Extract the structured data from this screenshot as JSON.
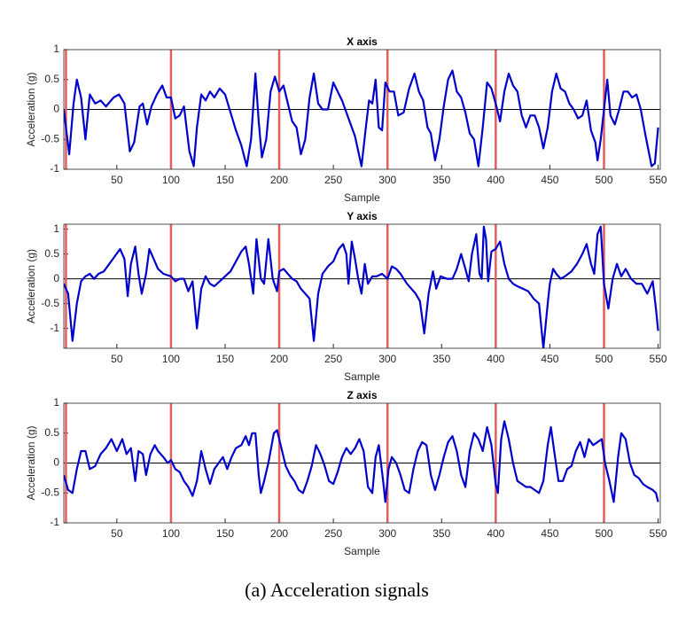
{
  "caption": "(a) Acceleration signals",
  "chart_data": [
    {
      "type": "line",
      "title": "X axis",
      "xlabel": "Sample",
      "ylabel": "Acceleration (g)",
      "color": "#0000cc",
      "xlim": [
        1,
        552
      ],
      "ylim": [
        -1,
        1
      ],
      "xticks": [
        50,
        100,
        150,
        200,
        250,
        300,
        350,
        400,
        450,
        500,
        550
      ],
      "yticks": [
        -1,
        -0.5,
        0,
        0.5,
        1
      ],
      "vlines": [
        3,
        100,
        200,
        300,
        400,
        500
      ],
      "vline_color": "#e06060",
      "hlines": [
        0
      ],
      "x": [
        1,
        6,
        10,
        13,
        17,
        21,
        25,
        30,
        35,
        40,
        47,
        52,
        57,
        62,
        66,
        71,
        74,
        78,
        82,
        87,
        92,
        96,
        100,
        104,
        108,
        112,
        117,
        121,
        124,
        128,
        132,
        136,
        140,
        145,
        150,
        155,
        160,
        165,
        170,
        174,
        178,
        181,
        184,
        188,
        192,
        196,
        200,
        204,
        208,
        212,
        216,
        220,
        224,
        228,
        232,
        236,
        240,
        245,
        250,
        254,
        258,
        262,
        266,
        270,
        276,
        280,
        283,
        286,
        289,
        292,
        295,
        298,
        302,
        306,
        310,
        315,
        320,
        325,
        329,
        333,
        337,
        340,
        344,
        348,
        352,
        356,
        360,
        364,
        368,
        372,
        376,
        380,
        384,
        388,
        392,
        396,
        400,
        404,
        408,
        412,
        416,
        420,
        424,
        428,
        432,
        436,
        440,
        444,
        448,
        452,
        456,
        460,
        464,
        468,
        472,
        476,
        480,
        484,
        488,
        492,
        494,
        497,
        500,
        503,
        506,
        510,
        514,
        518,
        522,
        526,
        530,
        534,
        538,
        544,
        547,
        550
      ],
      "values": [
        0,
        -0.75,
        0.1,
        0.5,
        0.2,
        -0.5,
        0.25,
        0.1,
        0.15,
        0.05,
        0.2,
        0.25,
        0.1,
        -0.7,
        -0.55,
        0.05,
        0.1,
        -0.25,
        0.05,
        0.25,
        0.4,
        0.2,
        0.2,
        -0.15,
        -0.1,
        0.05,
        -0.7,
        -0.95,
        -0.3,
        0.25,
        0.15,
        0.3,
        0.2,
        0.35,
        0.25,
        -0.05,
        -0.35,
        -0.6,
        -0.95,
        -0.5,
        0.6,
        -0.2,
        -0.8,
        -0.5,
        0.3,
        0.55,
        0.3,
        0.4,
        0.1,
        -0.2,
        -0.3,
        -0.75,
        -0.5,
        0.2,
        0.6,
        0.1,
        0,
        0,
        0.45,
        0.3,
        0.15,
        -0.05,
        -0.25,
        -0.45,
        -0.95,
        -0.3,
        0.15,
        0.1,
        0.5,
        -0.3,
        -0.35,
        0.45,
        0.3,
        0.3,
        -0.1,
        -0.05,
        0.35,
        0.6,
        0.3,
        0.15,
        -0.3,
        -0.4,
        -0.85,
        -0.5,
        0.05,
        0.5,
        0.65,
        0.3,
        0.2,
        -0.05,
        -0.4,
        -0.5,
        -0.95,
        -0.3,
        0.45,
        0.35,
        0.1,
        -0.2,
        0.3,
        0.6,
        0.4,
        0.3,
        -0.1,
        -0.3,
        -0.1,
        -0.1,
        -0.3,
        -0.65,
        -0.3,
        0.3,
        0.6,
        0.35,
        0.3,
        0.1,
        0,
        -0.15,
        -0.1,
        0.15,
        -0.35,
        -0.55,
        -0.85,
        -0.5,
        0,
        0.5,
        -0.1,
        -0.25,
        0,
        0.3,
        0.3,
        0.2,
        0.25,
        0,
        -0.4,
        -0.95,
        -0.9,
        -0.3
      ]
    },
    {
      "type": "line",
      "title": "Y axis",
      "xlabel": "Sample",
      "ylabel": "Acceleration (g)",
      "color": "#0000cc",
      "xlim": [
        1,
        552
      ],
      "ylim": [
        -1.4,
        1.1
      ],
      "xticks": [
        50,
        100,
        150,
        200,
        250,
        300,
        350,
        400,
        450,
        500,
        550
      ],
      "yticks": [
        -1,
        -0.5,
        0,
        0.5,
        1
      ],
      "vlines": [
        3,
        100,
        200,
        300,
        400,
        500
      ],
      "vline_color": "#e06060",
      "hlines": [
        0
      ],
      "x": [
        1,
        5,
        9,
        13,
        17,
        21,
        25,
        29,
        33,
        38,
        43,
        48,
        53,
        57,
        60,
        63,
        67,
        70,
        73,
        77,
        80,
        84,
        88,
        93,
        100,
        104,
        108,
        112,
        116,
        120,
        124,
        128,
        132,
        136,
        140,
        145,
        150,
        155,
        160,
        165,
        169,
        172,
        176,
        179,
        183,
        186,
        190,
        194,
        198,
        200,
        204,
        208,
        212,
        216,
        220,
        224,
        228,
        232,
        236,
        240,
        245,
        250,
        255,
        259,
        262,
        264,
        267,
        270,
        273,
        276,
        279,
        282,
        286,
        290,
        295,
        300,
        304,
        308,
        312,
        318,
        322,
        326,
        330,
        334,
        338,
        342,
        345,
        349,
        355,
        360,
        364,
        368,
        372,
        375,
        378,
        382,
        385,
        387,
        389,
        391,
        393,
        396,
        400,
        404,
        408,
        412,
        416,
        420,
        425,
        430,
        435,
        440,
        444,
        448,
        450,
        453,
        456,
        460,
        464,
        470,
        475,
        480,
        484,
        488,
        491,
        494,
        497,
        500,
        504,
        508,
        512,
        516,
        520,
        525,
        530,
        535,
        540,
        545,
        548,
        550
      ],
      "values": [
        -0.1,
        -0.3,
        -1.25,
        -0.5,
        -0.05,
        0.05,
        0.1,
        0,
        0.1,
        0.15,
        0.3,
        0.45,
        0.6,
        0.4,
        -0.35,
        0.3,
        0.65,
        0.1,
        -0.3,
        0.1,
        0.6,
        0.4,
        0.2,
        0.1,
        0.05,
        -0.05,
        0,
        0,
        -0.25,
        -0.05,
        -1,
        -0.2,
        0.05,
        -0.1,
        -0.15,
        -0.05,
        0.05,
        0.15,
        0.35,
        0.55,
        0.65,
        0.3,
        -0.3,
        0.8,
        0,
        -0.1,
        0.8,
        0,
        -0.25,
        0.15,
        0.2,
        0.1,
        0,
        -0.05,
        -0.2,
        -0.3,
        -0.4,
        -1.25,
        -0.3,
        0.1,
        0.25,
        0.35,
        0.6,
        0.7,
        0.5,
        -0.1,
        0.75,
        0.4,
        0,
        -0.3,
        0.3,
        -0.1,
        0.05,
        0.05,
        0.1,
        0,
        0.25,
        0.2,
        0.1,
        -0.1,
        -0.2,
        -0.3,
        -0.45,
        -1.1,
        -0.3,
        0.15,
        -0.2,
        0.05,
        0,
        0,
        0.2,
        0.5,
        0.2,
        -0.05,
        0.5,
        0.9,
        0.1,
        0,
        1.05,
        0.8,
        -0.05,
        0.55,
        0.6,
        0.75,
        0.3,
        0,
        -0.1,
        -0.15,
        -0.2,
        -0.25,
        -0.4,
        -0.5,
        -1.4,
        -0.5,
        -0.1,
        0.2,
        0.1,
        0,
        0.05,
        0.15,
        0.3,
        0.5,
        0.7,
        0.3,
        0.1,
        0.9,
        1.05,
        -0.1,
        -0.6,
        0,
        0.3,
        0.05,
        0.2,
        0,
        -0.1,
        -0.1,
        -0.3,
        -0.05,
        -0.6,
        -1.05
      ]
    },
    {
      "type": "line",
      "title": "Z axis",
      "xlabel": "Sample",
      "ylabel": "Acceleration (g)",
      "color": "#0000cc",
      "xlim": [
        1,
        552
      ],
      "ylim": [
        -1,
        1
      ],
      "xticks": [
        50,
        100,
        150,
        200,
        250,
        300,
        350,
        400,
        450,
        500,
        550
      ],
      "yticks": [
        -1,
        -0.5,
        0,
        0.5,
        1
      ],
      "vlines": [
        3,
        100,
        200,
        300,
        400,
        500
      ],
      "vline_color": "#e06060",
      "hlines": [
        0
      ],
      "x": [
        1,
        5,
        9,
        13,
        17,
        21,
        25,
        30,
        35,
        40,
        45,
        50,
        55,
        59,
        63,
        67,
        70,
        74,
        77,
        81,
        85,
        88,
        93,
        97,
        100,
        104,
        108,
        112,
        116,
        120,
        124,
        128,
        132,
        136,
        140,
        144,
        148,
        152,
        156,
        160,
        165,
        169,
        172,
        175,
        178,
        181,
        183,
        186,
        190,
        195,
        198,
        202,
        206,
        210,
        214,
        218,
        222,
        226,
        230,
        234,
        238,
        242,
        246,
        250,
        254,
        258,
        262,
        266,
        270,
        274,
        278,
        282,
        286,
        289,
        292,
        296,
        298,
        301,
        304,
        308,
        312,
        316,
        320,
        324,
        328,
        332,
        336,
        340,
        344,
        348,
        352,
        356,
        360,
        364,
        368,
        372,
        376,
        380,
        384,
        388,
        392,
        396,
        400,
        402,
        405,
        408,
        412,
        416,
        420,
        424,
        428,
        432,
        436,
        440,
        444,
        448,
        451,
        454,
        458,
        462,
        466,
        470,
        474,
        478,
        482,
        486,
        490,
        494,
        498,
        501,
        505,
        509,
        513,
        516,
        520,
        524,
        528,
        532,
        536,
        540,
        545,
        548,
        550
      ],
      "values": [
        -0.2,
        -0.45,
        -0.5,
        -0.1,
        0.2,
        0.2,
        -0.1,
        -0.05,
        0.15,
        0.25,
        0.4,
        0.2,
        0.4,
        0.15,
        0.25,
        -0.3,
        0.2,
        0.15,
        -0.2,
        0.15,
        0.3,
        0.2,
        0.1,
        0,
        0.05,
        -0.1,
        -0.15,
        -0.3,
        -0.4,
        -0.55,
        -0.3,
        0.2,
        -0.1,
        -0.35,
        -0.1,
        0,
        0.1,
        -0.1,
        0.1,
        0.25,
        0.3,
        0.45,
        0.3,
        0.5,
        0.5,
        -0.2,
        -0.5,
        -0.3,
        0,
        0.5,
        0.55,
        0.25,
        -0.05,
        -0.2,
        -0.3,
        -0.45,
        -0.5,
        -0.3,
        -0.05,
        0.3,
        0.15,
        -0.05,
        -0.3,
        -0.35,
        -0.15,
        0.1,
        0.25,
        0.15,
        0.25,
        0.4,
        0.2,
        -0.4,
        -0.5,
        0.1,
        0.3,
        -0.3,
        -0.65,
        -0.1,
        0.1,
        0,
        -0.2,
        -0.45,
        -0.5,
        -0.1,
        0.2,
        0.35,
        0.3,
        -0.2,
        -0.45,
        -0.2,
        0.1,
        0.35,
        0.45,
        0.2,
        -0.2,
        -0.4,
        0.2,
        0.5,
        0.4,
        0.2,
        0.6,
        0.3,
        -0.35,
        -0.5,
        0.4,
        0.7,
        0.4,
        0,
        -0.3,
        -0.35,
        -0.4,
        -0.4,
        -0.45,
        -0.5,
        -0.3,
        0.3,
        0.6,
        0.2,
        -0.3,
        -0.3,
        -0.1,
        -0.05,
        0.2,
        0.35,
        0.1,
        0.4,
        0.3,
        0.35,
        0.4,
        0,
        -0.3,
        -0.65,
        0.1,
        0.5,
        0.4,
        0,
        -0.2,
        -0.25,
        -0.35,
        -0.4,
        -0.45,
        -0.5,
        -0.65
      ]
    }
  ]
}
